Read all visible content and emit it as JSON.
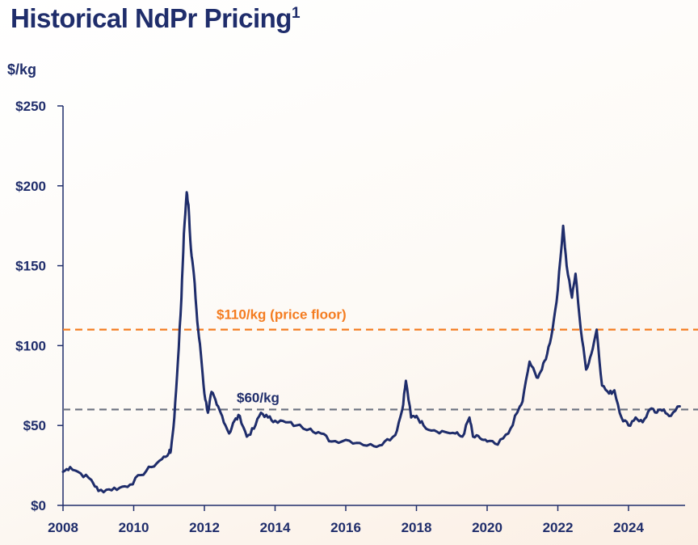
{
  "title": "Historical NdPr Pricing",
  "title_sup": "1",
  "unit_label": "$/kg",
  "chart_data": {
    "type": "line",
    "title": "Historical NdPr Pricing",
    "ylabel": "$/kg",
    "xlabel": "",
    "xlim": [
      2008,
      2025.6
    ],
    "ylim": [
      0,
      250
    ],
    "x_ticks": [
      2008,
      2010,
      2012,
      2014,
      2016,
      2018,
      2020,
      2022,
      2024
    ],
    "x_tick_labels": [
      "2008",
      "2010",
      "2012",
      "2014",
      "2016",
      "2018",
      "2020",
      "2022",
      "2024"
    ],
    "y_ticks": [
      0,
      50,
      100,
      150,
      200,
      250
    ],
    "y_tick_labels": [
      "$0",
      "$50",
      "$100",
      "$150",
      "$200",
      "$250"
    ],
    "reference_lines": [
      {
        "value": 110,
        "label": "$110/kg (price floor)",
        "color": "#f47c20"
      },
      {
        "value": 60,
        "label": "$60/kg",
        "color": "#6b7280"
      }
    ],
    "series": [
      {
        "name": "NdPr price",
        "color": "#1f2d6b",
        "x": [
          2008.0,
          2008.2,
          2008.5,
          2008.8,
          2009.0,
          2009.3,
          2009.6,
          2009.9,
          2010.2,
          2010.5,
          2010.8,
          2011.0,
          2011.05,
          2011.15,
          2011.25,
          2011.35,
          2011.42,
          2011.5,
          2011.55,
          2011.62,
          2011.7,
          2011.8,
          2011.9,
          2012.0,
          2012.1,
          2012.2,
          2012.35,
          2012.5,
          2012.7,
          2012.85,
          2013.0,
          2013.2,
          2013.4,
          2013.6,
          2013.8,
          2014.0,
          2014.3,
          2014.6,
          2015.0,
          2015.3,
          2015.6,
          2016.0,
          2016.4,
          2016.8,
          2017.1,
          2017.4,
          2017.6,
          2017.7,
          2017.85,
          2018.0,
          2018.2,
          2018.5,
          2018.8,
          2019.1,
          2019.3,
          2019.5,
          2019.6,
          2019.8,
          2020.0,
          2020.3,
          2020.6,
          2020.85,
          2021.0,
          2021.2,
          2021.4,
          2021.55,
          2021.7,
          2021.85,
          2022.0,
          2022.15,
          2022.25,
          2022.4,
          2022.5,
          2022.65,
          2022.8,
          2022.95,
          2023.1,
          2023.25,
          2023.45,
          2023.6,
          2023.8,
          2024.0,
          2024.2,
          2024.4,
          2024.6,
          2024.8,
          2025.0,
          2025.2,
          2025.45
        ],
        "values": [
          21,
          24,
          20,
          16,
          9,
          10,
          11,
          13,
          19,
          24,
          29,
          33,
          34,
          55,
          90,
          130,
          170,
          196,
          188,
          160,
          145,
          115,
          95,
          70,
          58,
          71,
          63,
          56,
          45,
          53,
          56,
          43,
          48,
          58,
          55,
          53,
          52,
          50,
          48,
          45,
          40,
          41,
          39,
          37,
          40,
          44,
          60,
          78,
          55,
          56,
          50,
          47,
          46,
          45,
          43,
          55,
          43,
          42,
          40,
          38,
          45,
          58,
          65,
          90,
          80,
          85,
          95,
          110,
          135,
          175,
          150,
          130,
          145,
          110,
          85,
          95,
          110,
          75,
          70,
          72,
          55,
          50,
          55,
          52,
          60,
          58,
          60,
          56,
          62
        ]
      }
    ]
  }
}
